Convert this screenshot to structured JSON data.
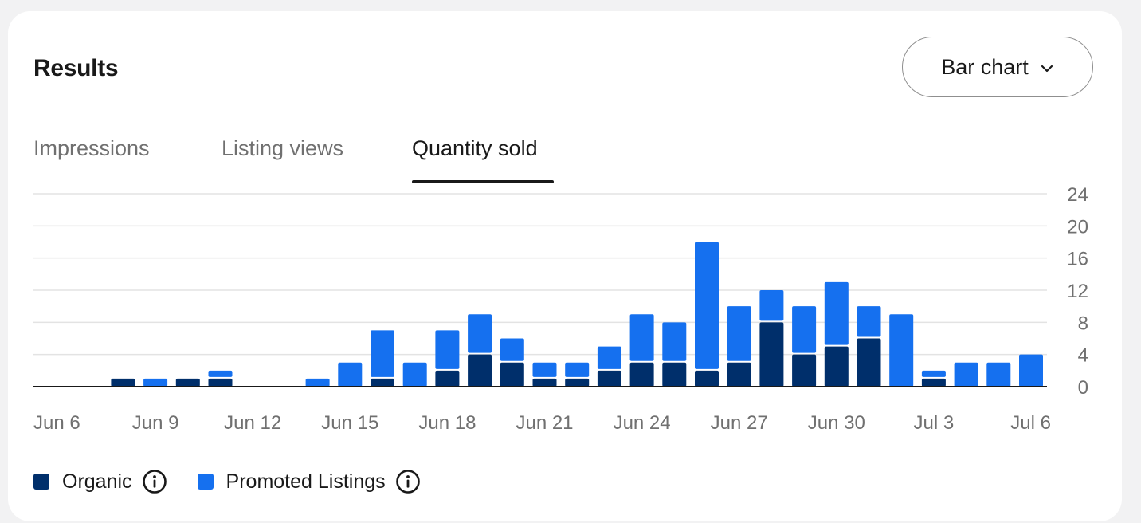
{
  "header": {
    "title": "Results",
    "chart_type_label": "Bar chart"
  },
  "tabs": [
    {
      "label": "Impressions",
      "active": false
    },
    {
      "label": "Listing views",
      "active": false
    },
    {
      "label": "Quantity sold",
      "active": true
    }
  ],
  "colors": {
    "organic": "#002f6b",
    "promoted": "#1570ef",
    "grid": "#e3e3e3",
    "axis": "#191919",
    "tick_text": "#707070"
  },
  "icons": {
    "chart_type_dropdown": "chevron-down-icon",
    "legend_info": "info-icon"
  },
  "chart_data": {
    "type": "bar",
    "stacked": true,
    "x": [
      "Jun 6",
      "Jun 7",
      "Jun 8",
      "Jun 9",
      "Jun 10",
      "Jun 11",
      "Jun 12",
      "Jun 13",
      "Jun 14",
      "Jun 15",
      "Jun 16",
      "Jun 17",
      "Jun 18",
      "Jun 19",
      "Jun 20",
      "Jun 21",
      "Jun 22",
      "Jun 23",
      "Jun 24",
      "Jun 25",
      "Jun 26",
      "Jun 27",
      "Jun 28",
      "Jun 29",
      "Jun 30",
      "Jul 1",
      "Jul 2",
      "Jul 3",
      "Jul 4",
      "Jul 5",
      "Jul 6"
    ],
    "x_tick_labels": [
      "Jun 6",
      "Jun 9",
      "Jun 12",
      "Jun 15",
      "Jun 18",
      "Jun 21",
      "Jun 24",
      "Jun 27",
      "Jun 30",
      "Jul 3",
      "Jul 6"
    ],
    "series": [
      {
        "name": "Organic",
        "values": [
          0,
          0,
          1,
          0,
          1,
          1,
          0,
          0,
          0,
          0,
          1,
          0,
          2,
          4,
          3,
          1,
          1,
          2,
          3,
          3,
          2,
          3,
          8,
          4,
          5,
          6,
          0,
          1,
          0,
          0,
          0
        ]
      },
      {
        "name": "Promoted Listings",
        "values": [
          0,
          0,
          0,
          1,
          0,
          1,
          0,
          0,
          1,
          3,
          6,
          3,
          5,
          5,
          3,
          2,
          2,
          3,
          6,
          5,
          16,
          7,
          4,
          6,
          8,
          4,
          9,
          1,
          3,
          3,
          4
        ]
      }
    ],
    "yticks": [
      0,
      4,
      8,
      12,
      16,
      20,
      24
    ],
    "ylim": [
      0,
      24
    ],
    "grid": true,
    "y_axis_position": "right",
    "legend_position": "bottom-left"
  }
}
